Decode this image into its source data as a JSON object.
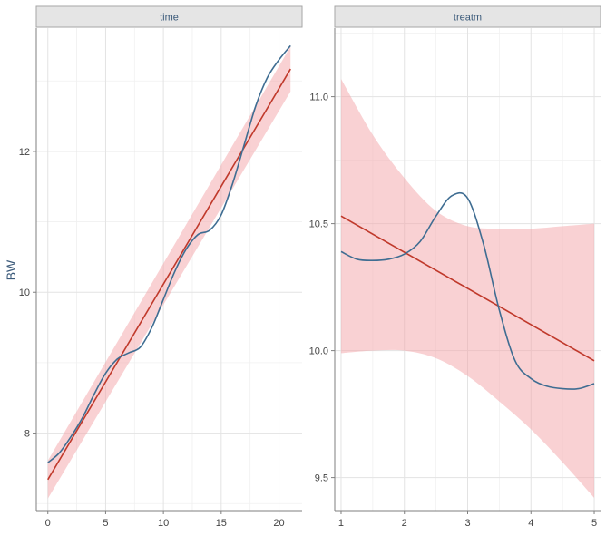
{
  "colors": {
    "fit_line": "#c0392b",
    "ci_band": "#f4a3a8",
    "smooth_line": "#3f6d92",
    "strip_bg": "#e5e5e5"
  },
  "chart_data": [
    {
      "type": "line",
      "panel_title": "time",
      "ylabel": "BW",
      "xlim": [
        -1,
        22
      ],
      "ylim": [
        6.9,
        13.75
      ],
      "x_ticks": [
        0,
        5,
        10,
        15,
        20
      ],
      "x_tick_labels": [
        "0",
        "5",
        "10",
        "15",
        "20"
      ],
      "y_ticks": [
        8,
        10,
        12
      ],
      "y_tick_labels": [
        "8",
        "10",
        "12"
      ],
      "grid": true,
      "series": [
        {
          "kind": "linear-fit",
          "x": [
            0,
            21
          ],
          "y": [
            7.34,
            13.17
          ],
          "ci_lower": [
            7.07,
            12.85
          ],
          "ci_upper": [
            7.61,
            13.49
          ]
        },
        {
          "kind": "smooth",
          "x": [
            0,
            1,
            2,
            3,
            4,
            5,
            6,
            7,
            8,
            9,
            10,
            11,
            12,
            13,
            14,
            15,
            16,
            17,
            18,
            19,
            20,
            21
          ],
          "y": [
            7.58,
            7.72,
            7.95,
            8.22,
            8.55,
            8.85,
            9.05,
            9.14,
            9.22,
            9.5,
            9.9,
            10.3,
            10.62,
            10.82,
            10.88,
            11.1,
            11.55,
            12.1,
            12.65,
            13.05,
            13.3,
            13.5
          ]
        }
      ]
    },
    {
      "type": "line",
      "panel_title": "treatm",
      "xlim": [
        0.9,
        5.1
      ],
      "ylim": [
        9.37,
        11.27
      ],
      "x_ticks": [
        1,
        2,
        3,
        4,
        5
      ],
      "x_tick_labels": [
        "1",
        "2",
        "3",
        "4",
        "5"
      ],
      "y_ticks": [
        9.5,
        10.0,
        10.5,
        11.0
      ],
      "y_tick_labels": [
        "9.5",
        "10.0",
        "10.5",
        "11.0"
      ],
      "grid": true,
      "series": [
        {
          "kind": "linear-fit",
          "x": [
            1,
            5
          ],
          "y": [
            10.53,
            9.96
          ],
          "ci_lower": [
            9.99,
            9.42
          ],
          "ci_upper": [
            11.07,
            10.5
          ]
        },
        {
          "kind": "ci-band-detail",
          "x": [
            1,
            1.5,
            2,
            2.5,
            3,
            3.5,
            4,
            4.5,
            5
          ],
          "ci_lower": [
            9.99,
            10.0,
            10.0,
            9.97,
            9.9,
            9.8,
            9.69,
            9.56,
            9.42
          ],
          "ci_upper": [
            11.07,
            10.85,
            10.68,
            10.55,
            10.49,
            10.48,
            10.48,
            10.49,
            10.5
          ]
        },
        {
          "kind": "smooth",
          "x": [
            1,
            1.25,
            1.5,
            1.75,
            2,
            2.25,
            2.5,
            2.75,
            3,
            3.25,
            3.5,
            3.75,
            4,
            4.25,
            4.5,
            4.75,
            5
          ],
          "y": [
            10.39,
            10.36,
            10.355,
            10.36,
            10.38,
            10.43,
            10.53,
            10.61,
            10.6,
            10.42,
            10.16,
            9.96,
            9.89,
            9.86,
            9.85,
            9.85,
            9.87
          ]
        }
      ]
    }
  ]
}
